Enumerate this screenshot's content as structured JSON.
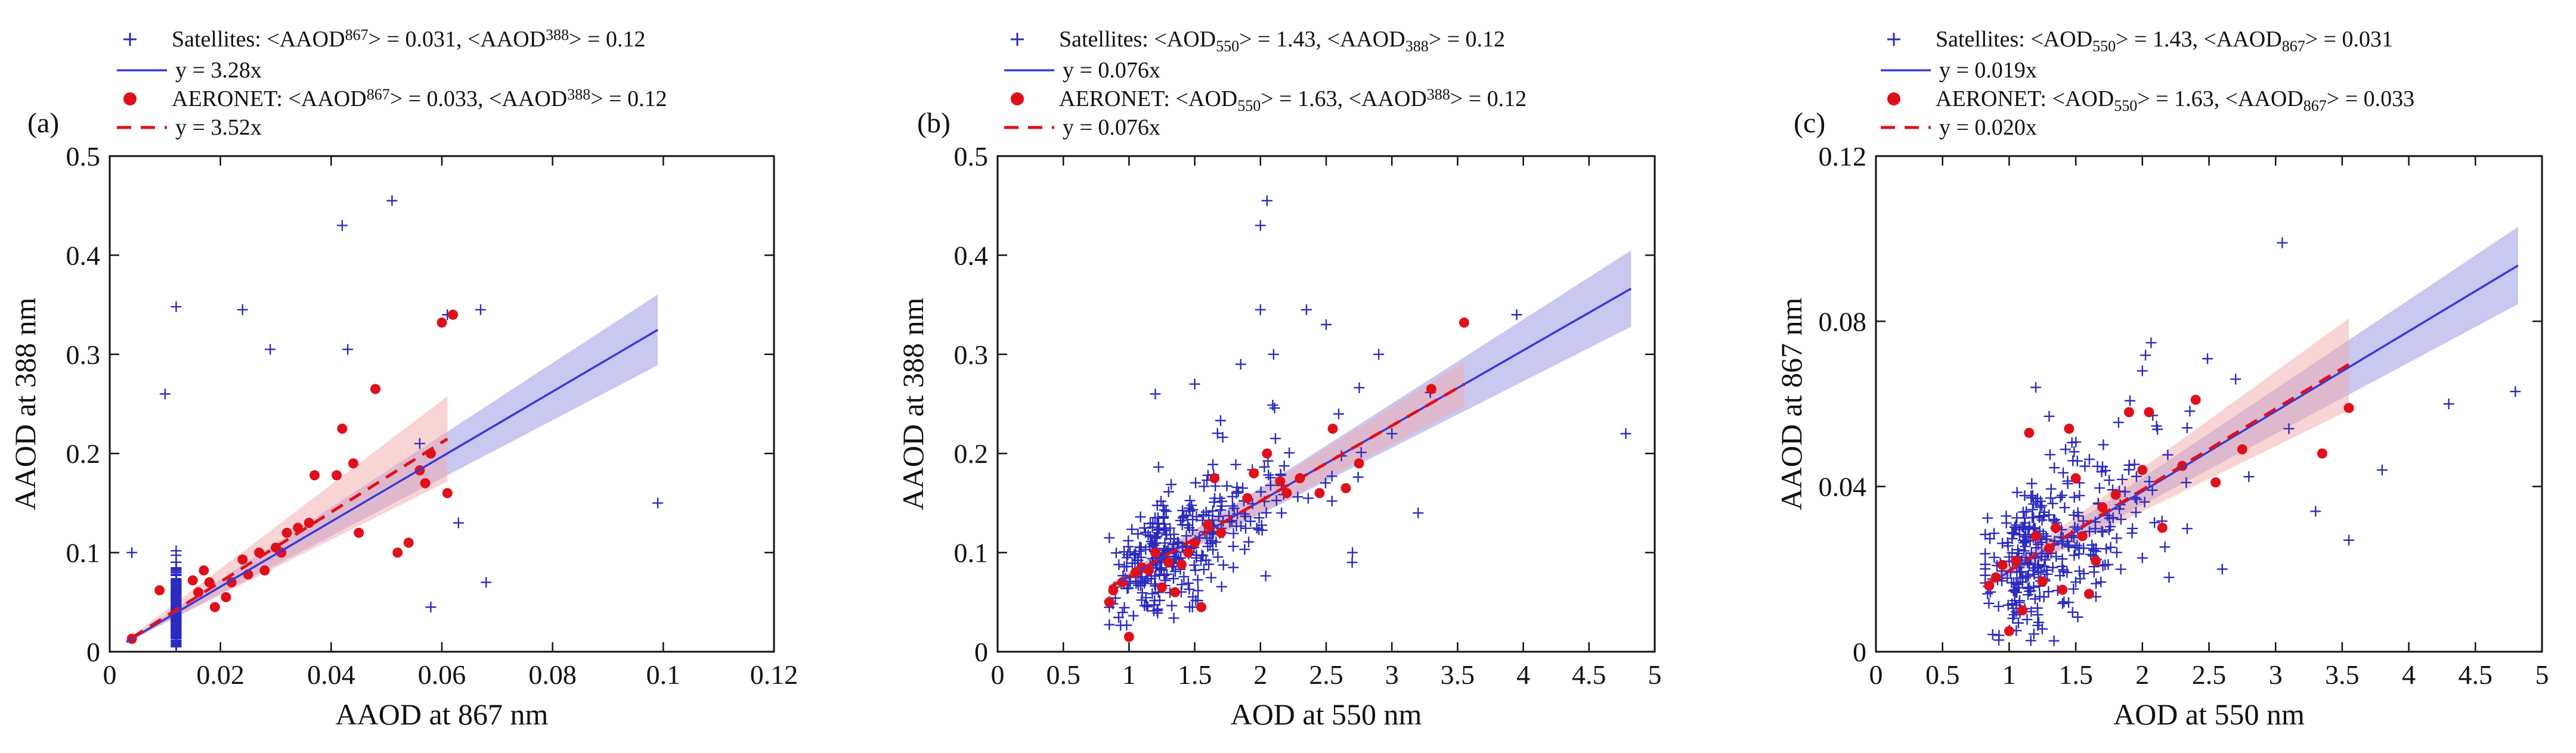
{
  "chart_data": [
    {
      "type": "scatter",
      "panel_label": "(a)",
      "xlabel": "AAOD at 867 nm",
      "ylabel": "AAOD at 388 nm",
      "xlim": [
        0,
        0.12
      ],
      "ylim": [
        0,
        0.5
      ],
      "xticks": [
        0,
        0.02,
        0.04,
        0.06,
        0.08,
        0.1,
        0.12
      ],
      "xtick_labels": [
        "0",
        "0.02",
        "0.04",
        "0.06",
        "0.08",
        "0.1",
        "0.12"
      ],
      "yticks": [
        0,
        0.1,
        0.2,
        0.3,
        0.4,
        0.5
      ],
      "ytick_labels": [
        "0",
        "0.1",
        "0.2",
        "0.3",
        "0.4",
        "0.5"
      ],
      "legend": [
        {
          "marker": "plus",
          "color": "#2b2bbf",
          "parts": [
            [
              "Satellites: <AAOD",
              ""
            ],
            [
              "867",
              "sup"
            ],
            [
              "> = 0.031, <AAOD",
              ""
            ],
            [
              "388",
              "sup"
            ],
            [
              "> = 0.12",
              ""
            ]
          ]
        },
        {
          "marker": "line",
          "color": "#3a3ad6",
          "parts": [
            [
              "y = 3.28x",
              ""
            ]
          ]
        },
        {
          "marker": "dot",
          "color": "#e0101a",
          "parts": [
            [
              "AERONET: <AAOD",
              ""
            ],
            [
              "867",
              "sup"
            ],
            [
              "> = 0.033, <AAOD",
              ""
            ],
            [
              "388",
              "sup"
            ],
            [
              "> = 0.12",
              ""
            ]
          ]
        },
        {
          "marker": "dash",
          "color": "#e0101a",
          "parts": [
            [
              "y = 3.52x",
              ""
            ]
          ]
        }
      ],
      "fits": [
        {
          "name": "Satellites",
          "slope": 3.28,
          "x_range": [
            0.003,
            0.099
          ],
          "band_frac_start": 0.12,
          "band_frac_end": 0.11,
          "color": "#3a3ad6",
          "band_color": "#9a9ae6"
        },
        {
          "name": "AERONET",
          "slope": 3.52,
          "x_range": [
            0.004,
            0.061
          ],
          "band_frac_start": 0.12,
          "band_frac_end": 0.2,
          "color": "#e0101a",
          "band_color": "#f4aaaa"
        }
      ],
      "scatter_generation": {
        "seed": 11,
        "n": 340,
        "x_dist": [
          0.024,
          0.008,
          0.5,
          0.012
        ],
        "slope": 3.28,
        "y_scatter": 0.025,
        "x_range": [
          0.002,
          0.1
        ],
        "y_range": [
          0.005,
          0.48
        ]
      },
      "series": [
        {
          "name": "Satellites",
          "marker": "plus",
          "color": "#2b2bbf",
          "points": [
            [
              0.051,
              0.455
            ],
            [
              0.042,
              0.43
            ],
            [
              0.012,
              0.348
            ],
            [
              0.024,
              0.345
            ],
            [
              0.067,
              0.345
            ],
            [
              0.061,
              0.34
            ],
            [
              0.029,
              0.305
            ],
            [
              0.043,
              0.305
            ],
            [
              0.056,
              0.21
            ],
            [
              0.099,
              0.15
            ],
            [
              0.068,
              0.07
            ],
            [
              0.004,
              0.1
            ],
            [
              0.063,
              0.13
            ],
            [
              0.058,
              0.045
            ],
            [
              0.01,
              0.26
            ]
          ]
        },
        {
          "name": "AERONET",
          "marker": "dot",
          "color": "#e0101a",
          "points": [
            [
              0.004,
              0.013
            ],
            [
              0.009,
              0.062
            ],
            [
              0.015,
              0.072
            ],
            [
              0.016,
              0.06
            ],
            [
              0.017,
              0.082
            ],
            [
              0.018,
              0.07
            ],
            [
              0.019,
              0.045
            ],
            [
              0.021,
              0.055
            ],
            [
              0.022,
              0.07
            ],
            [
              0.024,
              0.093
            ],
            [
              0.025,
              0.078
            ],
            [
              0.027,
              0.1
            ],
            [
              0.028,
              0.082
            ],
            [
              0.03,
              0.105
            ],
            [
              0.031,
              0.1
            ],
            [
              0.032,
              0.12
            ],
            [
              0.034,
              0.125
            ],
            [
              0.036,
              0.13
            ],
            [
              0.037,
              0.178
            ],
            [
              0.041,
              0.178
            ],
            [
              0.042,
              0.225
            ],
            [
              0.044,
              0.19
            ],
            [
              0.045,
              0.12
            ],
            [
              0.048,
              0.265
            ],
            [
              0.052,
              0.1
            ],
            [
              0.054,
              0.11
            ],
            [
              0.057,
              0.17
            ],
            [
              0.058,
              0.2
            ],
            [
              0.06,
              0.332
            ],
            [
              0.061,
              0.16
            ],
            [
              0.062,
              0.34
            ],
            [
              0.056,
              0.183
            ]
          ]
        }
      ]
    },
    {
      "type": "scatter",
      "panel_label": "(b)",
      "xlabel": "AOD at 550 nm",
      "ylabel": "AAOD at 388 nm",
      "xlim": [
        0,
        5
      ],
      "ylim": [
        0,
        0.5
      ],
      "xticks": [
        0,
        0.5,
        1,
        1.5,
        2,
        2.5,
        3,
        3.5,
        4,
        4.5,
        5
      ],
      "xtick_labels": [
        "0",
        "0.5",
        "1",
        "1.5",
        "2",
        "2.5",
        "3",
        "3.5",
        "4",
        "4.5",
        "5"
      ],
      "yticks": [
        0,
        0.1,
        0.2,
        0.3,
        0.4,
        0.5
      ],
      "ytick_labels": [
        "0",
        "0.1",
        "0.2",
        "0.3",
        "0.4",
        "0.5"
      ],
      "legend": [
        {
          "marker": "plus",
          "color": "#2b2bbf",
          "parts": [
            [
              "Satellites: <AOD",
              ""
            ],
            [
              "550",
              "sub"
            ],
            [
              "> = 1.43, <AAOD",
              ""
            ],
            [
              "388",
              "sub"
            ],
            [
              "> = 0.12",
              ""
            ]
          ]
        },
        {
          "marker": "line",
          "color": "#3a3ad6",
          "parts": [
            [
              "y = 0.076x",
              ""
            ]
          ]
        },
        {
          "marker": "dot",
          "color": "#e0101a",
          "parts": [
            [
              "AERONET: <AOD",
              ""
            ],
            [
              "550",
              "sub"
            ],
            [
              "> = 1.63, <AAOD",
              ""
            ],
            [
              "388",
              "sup"
            ],
            [
              "> = 0.12",
              ""
            ]
          ]
        },
        {
          "marker": "dash",
          "color": "#e0101a",
          "parts": [
            [
              "y = 0.076x",
              ""
            ]
          ]
        }
      ],
      "fits": [
        {
          "name": "Satellites",
          "slope": 0.076,
          "x_range": [
            0.85,
            4.82
          ],
          "band_frac_start": 0.05,
          "band_frac_end": 0.105,
          "color": "#3a3ad6",
          "band_color": "#9a9ae6"
        },
        {
          "name": "AERONET",
          "slope": 0.076,
          "x_range": [
            0.85,
            3.55
          ],
          "band_frac_start": 0.05,
          "band_frac_end": 0.085,
          "color": "#e0101a",
          "band_color": "#f4aaaa"
        }
      ],
      "scatter_generation": {
        "seed": 23,
        "n": 340,
        "x_dist": [
          1.3,
          0.38,
          0.85,
          3.6
        ],
        "slope": 0.076,
        "y_scatter": 0.028,
        "x_range": [
          0.8,
          4.9
        ],
        "y_range": [
          0.02,
          0.46
        ]
      },
      "series": [
        {
          "name": "Satellites",
          "marker": "plus",
          "color": "#2b2bbf",
          "points": [
            [
              2.05,
              0.455
            ],
            [
              2.0,
              0.43
            ],
            [
              2.0,
              0.345
            ],
            [
              2.35,
              0.345
            ],
            [
              3.95,
              0.34
            ],
            [
              2.1,
              0.3
            ],
            [
              1.85,
              0.29
            ],
            [
              4.78,
              0.22
            ],
            [
              1.2,
              0.26
            ],
            [
              1.5,
              0.27
            ],
            [
              2.9,
              0.3
            ],
            [
              2.5,
              0.33
            ],
            [
              3.0,
              0.22
            ],
            [
              2.7,
              0.1
            ],
            [
              3.2,
              0.14
            ]
          ]
        },
        {
          "name": "AERONET",
          "marker": "dot",
          "color": "#e0101a",
          "points": [
            [
              0.85,
              0.05
            ],
            [
              0.88,
              0.062
            ],
            [
              0.95,
              0.07
            ],
            [
              1.0,
              0.015
            ],
            [
              1.05,
              0.08
            ],
            [
              1.1,
              0.085
            ],
            [
              1.15,
              0.082
            ],
            [
              1.2,
              0.1
            ],
            [
              1.25,
              0.065
            ],
            [
              1.3,
              0.09
            ],
            [
              1.35,
              0.06
            ],
            [
              1.4,
              0.088
            ],
            [
              1.45,
              0.1
            ],
            [
              1.5,
              0.11
            ],
            [
              1.55,
              0.045
            ],
            [
              1.6,
              0.128
            ],
            [
              1.65,
              0.175
            ],
            [
              1.7,
              0.12
            ],
            [
              1.9,
              0.155
            ],
            [
              1.95,
              0.18
            ],
            [
              2.05,
              0.2
            ],
            [
              2.15,
              0.172
            ],
            [
              2.2,
              0.16
            ],
            [
              2.3,
              0.175
            ],
            [
              2.45,
              0.16
            ],
            [
              2.55,
              0.225
            ],
            [
              2.65,
              0.165
            ],
            [
              2.75,
              0.19
            ],
            [
              3.3,
              0.265
            ],
            [
              3.55,
              0.332
            ]
          ]
        }
      ]
    },
    {
      "type": "scatter",
      "panel_label": "(c)",
      "xlabel": "AOD at 550 nm",
      "ylabel": "AAOD at 867 nm",
      "xlim": [
        0,
        5
      ],
      "ylim": [
        0,
        0.12
      ],
      "xticks": [
        0,
        0.5,
        1,
        1.5,
        2,
        2.5,
        3,
        3.5,
        4,
        4.5,
        5
      ],
      "xtick_labels": [
        "0",
        "0.5",
        "1",
        "1.5",
        "2",
        "2.5",
        "3",
        "3.5",
        "4",
        "4.5",
        "5"
      ],
      "yticks": [
        0,
        0.04,
        0.08,
        0.12
      ],
      "ytick_labels": [
        "0",
        "0.04",
        "0.08",
        "0.12"
      ],
      "legend": [
        {
          "marker": "plus",
          "color": "#2b2bbf",
          "parts": [
            [
              "Satellites: <AOD",
              ""
            ],
            [
              "550",
              "sub"
            ],
            [
              "> = 1.43, <AAOD",
              ""
            ],
            [
              "867",
              "sub"
            ],
            [
              "> = 0.031",
              ""
            ]
          ]
        },
        {
          "marker": "line",
          "color": "#3a3ad6",
          "parts": [
            [
              "y = 0.019x",
              ""
            ]
          ]
        },
        {
          "marker": "dot",
          "color": "#e0101a",
          "parts": [
            [
              "AERONET: <AOD",
              ""
            ],
            [
              "550",
              "sub"
            ],
            [
              "> = 1.63, <AAOD",
              ""
            ],
            [
              "867",
              "sub"
            ],
            [
              "> = 0.033",
              ""
            ]
          ]
        },
        {
          "marker": "dash",
          "color": "#e0101a",
          "parts": [
            [
              "y = 0.020x",
              ""
            ]
          ]
        }
      ],
      "fits": [
        {
          "name": "Satellites",
          "slope": 0.0194,
          "x_range": [
            0.85,
            4.82
          ],
          "band_frac_start": 0.05,
          "band_frac_end": 0.1,
          "color": "#3a3ad6",
          "band_color": "#9a9ae6"
        },
        {
          "name": "AERONET",
          "slope": 0.0196,
          "x_range": [
            0.85,
            3.55
          ],
          "band_frac_start": 0.05,
          "band_frac_end": 0.16,
          "color": "#e0101a",
          "band_color": "#f4aaaa"
        }
      ],
      "scatter_generation": {
        "seed": 37,
        "n": 340,
        "x_dist": [
          1.25,
          0.35,
          0.82,
          3.6
        ],
        "slope": 0.0194,
        "y_scatter": 0.009,
        "x_range": [
          0.8,
          4.9
        ],
        "y_range": [
          0.002,
          0.1
        ]
      },
      "series": [
        {
          "name": "Satellites",
          "marker": "plus",
          "color": "#2b2bbf",
          "points": [
            [
              3.05,
              0.099
            ],
            [
              4.8,
              0.063
            ],
            [
              3.55,
              0.027
            ],
            [
              2.0,
              0.068
            ],
            [
              2.7,
              0.066
            ],
            [
              3.1,
              0.054
            ],
            [
              4.3,
              0.06
            ],
            [
              2.2,
              0.018
            ],
            [
              3.3,
              0.034
            ],
            [
              3.8,
              0.044
            ],
            [
              1.3,
              0.057
            ],
            [
              2.6,
              0.02
            ],
            [
              1.2,
              0.064
            ]
          ]
        },
        {
          "name": "AERONET",
          "marker": "dot",
          "color": "#e0101a",
          "points": [
            [
              0.85,
              0.016
            ],
            [
              0.9,
              0.018
            ],
            [
              0.95,
              0.021
            ],
            [
              1.0,
              0.005
            ],
            [
              1.05,
              0.022
            ],
            [
              1.1,
              0.01
            ],
            [
              1.15,
              0.053
            ],
            [
              1.2,
              0.028
            ],
            [
              1.25,
              0.017
            ],
            [
              1.3,
              0.025
            ],
            [
              1.35,
              0.03
            ],
            [
              1.4,
              0.015
            ],
            [
              1.45,
              0.054
            ],
            [
              1.5,
              0.042
            ],
            [
              1.55,
              0.028
            ],
            [
              1.6,
              0.014
            ],
            [
              1.65,
              0.022
            ],
            [
              1.7,
              0.035
            ],
            [
              1.8,
              0.038
            ],
            [
              1.9,
              0.058
            ],
            [
              2.0,
              0.044
            ],
            [
              2.05,
              0.058
            ],
            [
              2.15,
              0.03
            ],
            [
              2.3,
              0.045
            ],
            [
              2.4,
              0.061
            ],
            [
              2.55,
              0.041
            ],
            [
              2.75,
              0.049
            ],
            [
              3.35,
              0.048
            ],
            [
              3.55,
              0.059
            ]
          ]
        }
      ]
    }
  ]
}
